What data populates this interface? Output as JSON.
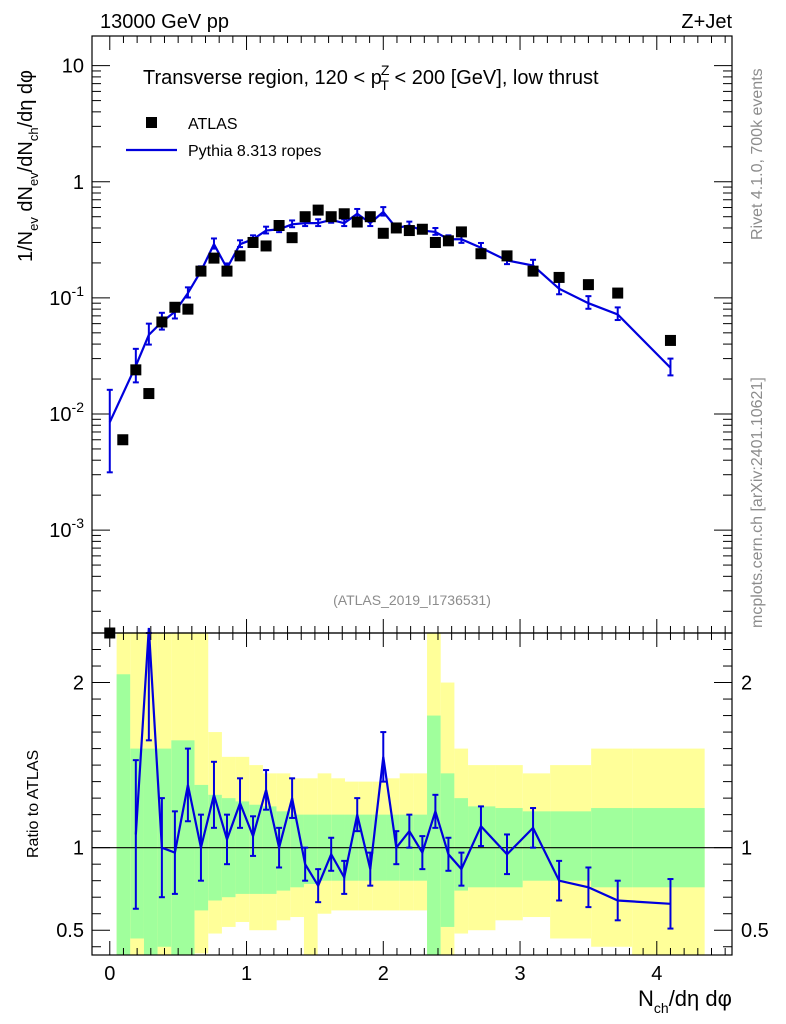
{
  "chart_data": {
    "type": "scatter",
    "header_left": "13000 GeV pp",
    "header_right": "Z+Jet",
    "title_main": "Transverse region, 120 < p",
    "title_sup": "Z",
    "title_sub": "T",
    "title_tail": " < 200 [GeV], low thrust",
    "watermark": "(ATLAS_2019_I1736531)",
    "side_rivet": "Rivet 4.1.0,  700k events",
    "side_mcplots": "mcplots.cern.ch [arXiv:2401.10621]",
    "ylabel": "1/N_ev dN_ev/dN_ch/dη dφ",
    "ratio_ylabel": "Ratio to ATLAS",
    "xlabel": "N_ch/dη dφ",
    "xlim": [
      -0.13,
      4.55
    ],
    "ylim_log": [
      0.00013,
      18
    ],
    "ratio_ylim": [
      0.35,
      2.3
    ],
    "x_ticks": [
      "0",
      "1",
      "2",
      "3",
      "4"
    ],
    "y_ticks": [
      "10",
      "1",
      "10^-1",
      "10^-2",
      "10^-3"
    ],
    "ratio_ticks": [
      "2",
      "1",
      "0.5"
    ],
    "legend": [
      {
        "name": "ATLAS",
        "marker": "square",
        "color": "#000000"
      },
      {
        "name": "Pythia 8.313 ropes",
        "marker": "line",
        "color": "#0000dd"
      }
    ],
    "data_x": [
      0,
      0.0952,
      0.1905,
      0.2857,
      0.381,
      0.4762,
      0.5714,
      0.6667,
      0.7619,
      0.8571,
      0.9524,
      1.0476,
      1.1429,
      1.2381,
      1.3333,
      1.4286,
      1.5238,
      1.619,
      1.7143,
      1.8095,
      1.9048,
      2.0,
      2.0952,
      2.1905,
      2.2857,
      2.381,
      2.4762,
      2.5714,
      2.7143,
      2.9048,
      3.0952,
      3.2857,
      3.5,
      3.7143,
      4.1
    ],
    "atlas_y": [
      0.00011,
      0.006,
      0.024,
      0.015,
      0.062,
      0.083,
      0.08,
      0.17,
      0.22,
      0.17,
      0.23,
      0.3,
      0.28,
      0.42,
      0.33,
      0.5,
      0.57,
      0.5,
      0.53,
      0.45,
      0.5,
      0.36,
      0.4,
      0.38,
      0.39,
      0.3,
      0.31,
      0.37,
      0.24,
      0.23,
      0.17,
      0.15,
      0.13,
      0.11,
      0.043
    ],
    "pythia_y": [
      0.0085,
      null,
      0.026,
      0.048,
      0.062,
      0.076,
      0.11,
      0.17,
      0.29,
      0.18,
      0.29,
      0.32,
      0.38,
      0.39,
      0.43,
      0.44,
      0.44,
      0.47,
      0.44,
      0.53,
      0.44,
      0.55,
      0.4,
      0.42,
      0.38,
      0.37,
      0.32,
      0.32,
      0.27,
      0.21,
      0.19,
      0.12,
      0.09,
      0.072,
      0.025
    ],
    "pythia_err": [
      0.9,
      null,
      0.4,
      0.25,
      0.2,
      0.18,
      0.12,
      0.1,
      0.12,
      0.1,
      0.08,
      0.08,
      0.08,
      0.08,
      0.08,
      0.08,
      0.08,
      0.08,
      0.08,
      0.1,
      0.08,
      0.1,
      0.08,
      0.08,
      0.08,
      0.08,
      0.08,
      0.1,
      0.1,
      0.1,
      0.12,
      0.15,
      0.15,
      0.15,
      0.2
    ],
    "ratio_y": [
      null,
      null,
      1.08,
      2.35,
      1.0,
      0.97,
      1.38,
      1.0,
      1.32,
      1.05,
      1.27,
      1.07,
      1.35,
      1.0,
      1.3,
      0.9,
      0.77,
      0.96,
      0.82,
      1.2,
      0.87,
      1.55,
      1.0,
      1.1,
      0.97,
      1.22,
      0.96,
      0.87,
      1.13,
      0.96,
      1.12,
      0.8,
      0.76,
      0.68,
      0.66
    ],
    "ratio_err": [
      null,
      null,
      0.45,
      0.7,
      0.3,
      0.25,
      0.22,
      0.2,
      0.2,
      0.15,
      0.15,
      0.12,
      0.12,
      0.12,
      0.12,
      0.1,
      0.1,
      0.1,
      0.1,
      0.1,
      0.1,
      0.15,
      0.1,
      0.1,
      0.1,
      0.1,
      0.1,
      0.1,
      0.12,
      0.12,
      0.12,
      0.12,
      0.12,
      0.12,
      0.15
    ],
    "band_edges": [
      0.05,
      0.15,
      0.25,
      0.35,
      0.45,
      0.62,
      0.72,
      0.82,
      0.92,
      1.02,
      1.12,
      1.22,
      1.32,
      1.42,
      1.52,
      1.62,
      1.72,
      1.82,
      1.92,
      2.02,
      2.12,
      2.22,
      2.32,
      2.42,
      2.52,
      2.62,
      2.82,
      3.02,
      3.22,
      3.52,
      3.82,
      4.35
    ],
    "band_green_lo": [
      0.35,
      0.45,
      0.3,
      0.4,
      0.3,
      0.62,
      0.68,
      0.7,
      0.72,
      0.72,
      0.72,
      0.74,
      0.76,
      0.78,
      0.8,
      0.8,
      0.8,
      0.8,
      0.8,
      0.8,
      0.8,
      0.8,
      0.35,
      0.52,
      0.74,
      0.76,
      0.76,
      0.8,
      0.8,
      0.76,
      0.76
    ],
    "band_green_hi": [
      2.05,
      1.6,
      1.6,
      1.6,
      1.65,
      1.38,
      1.32,
      1.3,
      1.28,
      1.26,
      1.25,
      1.22,
      1.2,
      1.2,
      1.2,
      1.2,
      1.2,
      1.2,
      1.2,
      1.2,
      1.2,
      1.2,
      1.8,
      1.45,
      1.3,
      1.25,
      1.24,
      1.22,
      1.22,
      1.24,
      1.24
    ],
    "band_yellow_lo": [
      0.35,
      0.35,
      0.35,
      0.35,
      0.35,
      0.36,
      0.48,
      0.52,
      0.55,
      0.5,
      0.5,
      0.56,
      0.58,
      0.35,
      0.6,
      0.62,
      0.62,
      0.62,
      0.62,
      0.62,
      0.62,
      0.62,
      0.35,
      0.35,
      0.48,
      0.5,
      0.56,
      0.58,
      0.45,
      0.4,
      0.35
    ],
    "band_yellow_hi": [
      2.3,
      2.3,
      2.3,
      2.3,
      2.3,
      2.3,
      1.7,
      1.55,
      1.55,
      1.5,
      1.45,
      1.45,
      1.42,
      1.42,
      1.45,
      1.42,
      1.4,
      1.4,
      1.4,
      1.42,
      1.45,
      1.45,
      2.3,
      2.0,
      1.6,
      1.5,
      1.5,
      1.45,
      1.5,
      1.6,
      1.6
    ],
    "colors": {
      "data": "#000000",
      "mc": "#0000dd",
      "band_green": "#a0ff9c",
      "band_yellow": "#ffff99",
      "axis": "#000000",
      "grey": "#8c8c8c"
    }
  }
}
